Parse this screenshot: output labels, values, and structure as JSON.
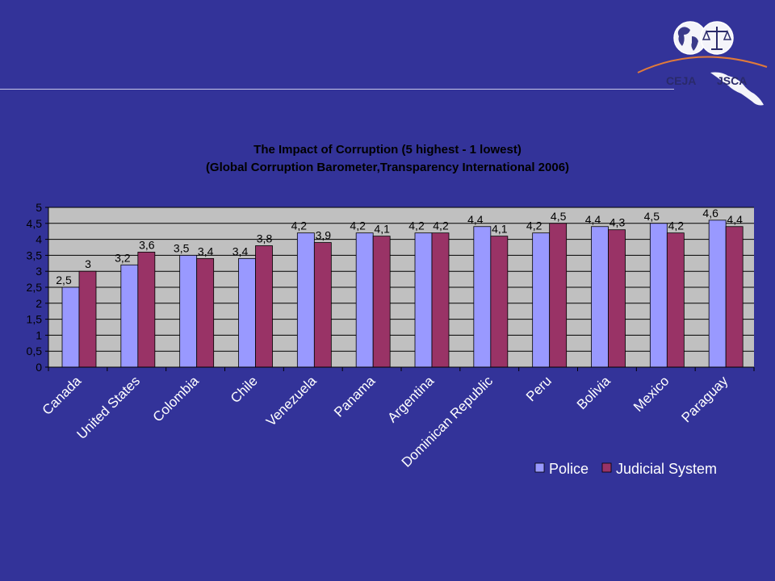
{
  "logo": {
    "left_text": "CEJA",
    "right_text": "JSCA"
  },
  "colors": {
    "background": "#333399",
    "plot_area": "#C0C0C0",
    "police": "#9999FF",
    "judicial": "#993366",
    "accent_line": "#E07A3A"
  },
  "chart_data": {
    "type": "bar",
    "title": "The Impact of Corruption (5 highest - 1 lowest)",
    "subtitle": "(Global Corruption Barometer,Transparency International 2006)",
    "categories": [
      "Canada",
      "United States",
      "Colombia",
      "Chile",
      "Venezuela",
      "Panama",
      "Argentina",
      "Dominican Republic",
      "Peru",
      "Bolivia",
      "Mexico",
      "Paraguay"
    ],
    "series": [
      {
        "name": "Police",
        "color": "#9999FF",
        "values": [
          2.5,
          3.2,
          3.5,
          3.4,
          4.2,
          4.2,
          4.2,
          4.4,
          4.2,
          4.4,
          4.5,
          4.6
        ],
        "labels": [
          "2,5",
          "3,2",
          "3,5",
          "3,4",
          "4,2",
          "4,2",
          "4,2",
          "4,4",
          "4,2",
          "4,4",
          "4,5",
          "4,6"
        ]
      },
      {
        "name": "Judicial System",
        "color": "#993366",
        "values": [
          3,
          3.6,
          3.4,
          3.8,
          3.9,
          4.1,
          4.2,
          4.1,
          4.5,
          4.3,
          4.2,
          4.4
        ],
        "labels": [
          "3",
          "3,6",
          "3,4",
          "3,8",
          "3,9",
          "4,1",
          "4,2",
          "4,1",
          "4,5",
          "4,3",
          "4,2",
          "4,4"
        ]
      }
    ],
    "ylim": [
      0,
      5
    ],
    "yticks": [
      0,
      0.5,
      1,
      1.5,
      2,
      2.5,
      3,
      3.5,
      4,
      4.5,
      5
    ],
    "ytick_labels": [
      "0",
      "0,5",
      "1",
      "1,5",
      "2",
      "2,5",
      "3",
      "3,5",
      "4",
      "4,5",
      "5"
    ],
    "grid": true,
    "legend_position": "bottom-right"
  }
}
